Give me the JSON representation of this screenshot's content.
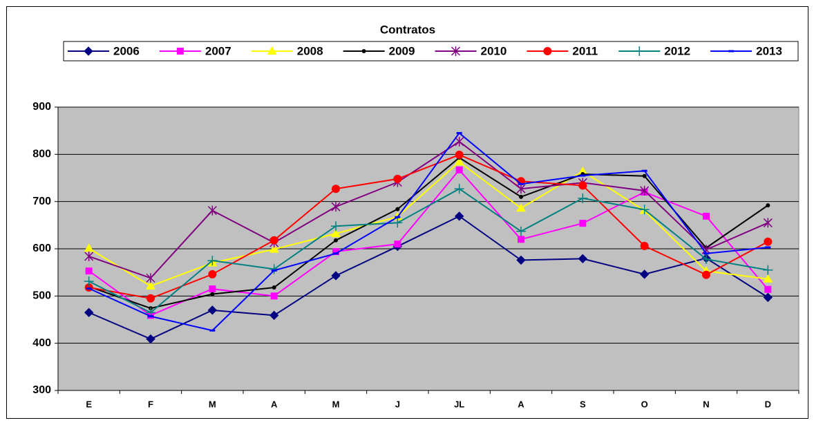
{
  "chart_data": {
    "type": "line",
    "title": "Contratos",
    "categories": [
      "E",
      "F",
      "M",
      "A",
      "M",
      "J",
      "JL",
      "A",
      "S",
      "O",
      "N",
      "D"
    ],
    "ylim": [
      300,
      900
    ],
    "yticks": [
      300,
      400,
      500,
      600,
      700,
      800,
      900
    ],
    "grid": true,
    "legend": "top",
    "series": [
      {
        "name": "2006",
        "color": "#000080",
        "marker": "diamond",
        "values": [
          465,
          409,
          470,
          459,
          543,
          605,
          669,
          576,
          579,
          546,
          580,
          497
        ]
      },
      {
        "name": "2007",
        "color": "#ff00ff",
        "marker": "square",
        "values": [
          553,
          459,
          515,
          500,
          594,
          610,
          767,
          620,
          654,
          720,
          669,
          514
        ]
      },
      {
        "name": "2008",
        "color": "#ffff00",
        "marker": "triangle",
        "values": [
          601,
          521,
          570,
          599,
          632,
          668,
          784,
          686,
          764,
          681,
          553,
          536
        ]
      },
      {
        "name": "2009",
        "color": "#000000",
        "marker": "dot",
        "values": [
          520,
          474,
          504,
          518,
          618,
          684,
          793,
          710,
          758,
          754,
          602,
          692
        ]
      },
      {
        "name": "2010",
        "color": "#800080",
        "marker": "star",
        "values": [
          584,
          538,
          681,
          613,
          689,
          741,
          827,
          727,
          740,
          723,
          598,
          655
        ]
      },
      {
        "name": "2011",
        "color": "#ff0000",
        "marker": "circle",
        "values": [
          518,
          495,
          546,
          618,
          727,
          748,
          799,
          743,
          734,
          606,
          545,
          615
        ]
      },
      {
        "name": "2012",
        "color": "#008080",
        "marker": "plus",
        "values": [
          531,
          465,
          575,
          557,
          648,
          655,
          727,
          637,
          707,
          683,
          578,
          555
        ]
      },
      {
        "name": "2013",
        "color": "#0000ff",
        "marker": "dash",
        "values": [
          516,
          457,
          427,
          554,
          590,
          667,
          845,
          737,
          755,
          765,
          590,
          603
        ]
      }
    ]
  }
}
